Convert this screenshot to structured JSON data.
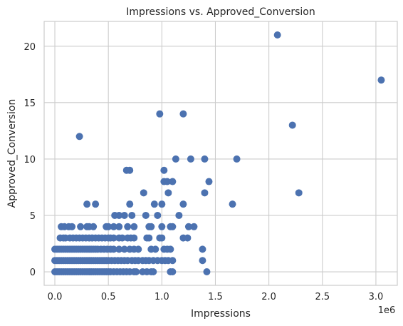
{
  "chart_data": {
    "type": "scatter",
    "title": "Impressions vs. Approved_Conversion",
    "xlabel": "Impressions",
    "ylabel": "Approved_Conversion",
    "x_offset_label": "1e6",
    "x_tick_values": [
      0,
      0.5,
      1.0,
      1.5,
      2.0,
      2.5,
      3.0
    ],
    "x_tick_labels": [
      "0.0",
      "0.5",
      "1.0",
      "1.5",
      "2.0",
      "2.5",
      "3.0"
    ],
    "y_tick_values": [
      0,
      5,
      10,
      15,
      20
    ],
    "y_tick_labels": [
      "0",
      "5",
      "10",
      "15",
      "20"
    ],
    "xlim": [
      -0.1,
      3.2
    ],
    "ylim": [
      -1.2,
      22.2
    ],
    "x_scale_multiplier": 1000000,
    "grid": true,
    "marker_color": "#4c72b0",
    "points": [
      [
        0.0,
        0
      ],
      [
        0.02,
        0
      ],
      [
        0.04,
        0
      ],
      [
        0.06,
        0
      ],
      [
        0.08,
        0
      ],
      [
        0.1,
        0
      ],
      [
        0.12,
        0
      ],
      [
        0.14,
        0
      ],
      [
        0.16,
        0
      ],
      [
        0.18,
        0
      ],
      [
        0.2,
        0
      ],
      [
        0.22,
        0
      ],
      [
        0.24,
        0
      ],
      [
        0.26,
        0
      ],
      [
        0.28,
        0
      ],
      [
        0.3,
        0
      ],
      [
        0.32,
        0
      ],
      [
        0.34,
        0
      ],
      [
        0.36,
        0
      ],
      [
        0.38,
        0
      ],
      [
        0.4,
        0
      ],
      [
        0.42,
        0
      ],
      [
        0.44,
        0
      ],
      [
        0.46,
        0
      ],
      [
        0.48,
        0
      ],
      [
        0.5,
        0
      ],
      [
        0.52,
        0
      ],
      [
        0.55,
        0
      ],
      [
        0.58,
        0
      ],
      [
        0.61,
        0
      ],
      [
        0.64,
        0
      ],
      [
        0.67,
        0
      ],
      [
        0.7,
        0
      ],
      [
        0.74,
        0
      ],
      [
        0.76,
        0
      ],
      [
        0.82,
        0
      ],
      [
        0.86,
        0
      ],
      [
        0.9,
        0
      ],
      [
        0.92,
        0
      ],
      [
        1.08,
        0
      ],
      [
        1.1,
        0
      ],
      [
        1.42,
        0
      ],
      [
        0.0,
        1
      ],
      [
        0.02,
        1
      ],
      [
        0.04,
        1
      ],
      [
        0.06,
        1
      ],
      [
        0.08,
        1
      ],
      [
        0.1,
        1
      ],
      [
        0.12,
        1
      ],
      [
        0.14,
        1
      ],
      [
        0.16,
        1
      ],
      [
        0.18,
        1
      ],
      [
        0.2,
        1
      ],
      [
        0.22,
        1
      ],
      [
        0.24,
        1
      ],
      [
        0.26,
        1
      ],
      [
        0.28,
        1
      ],
      [
        0.3,
        1
      ],
      [
        0.32,
        1
      ],
      [
        0.34,
        1
      ],
      [
        0.36,
        1
      ],
      [
        0.38,
        1
      ],
      [
        0.4,
        1
      ],
      [
        0.42,
        1
      ],
      [
        0.44,
        1
      ],
      [
        0.46,
        1
      ],
      [
        0.48,
        1
      ],
      [
        0.5,
        1
      ],
      [
        0.53,
        1
      ],
      [
        0.56,
        1
      ],
      [
        0.59,
        1
      ],
      [
        0.62,
        1
      ],
      [
        0.65,
        1
      ],
      [
        0.68,
        1
      ],
      [
        0.72,
        1
      ],
      [
        0.75,
        1
      ],
      [
        0.78,
        1
      ],
      [
        0.82,
        1
      ],
      [
        0.85,
        1
      ],
      [
        0.88,
        1
      ],
      [
        0.92,
        1
      ],
      [
        0.96,
        1
      ],
      [
        1.0,
        1
      ],
      [
        1.03,
        1
      ],
      [
        1.06,
        1
      ],
      [
        1.1,
        1
      ],
      [
        1.38,
        1
      ],
      [
        0.0,
        2
      ],
      [
        0.02,
        2
      ],
      [
        0.04,
        2
      ],
      [
        0.06,
        2
      ],
      [
        0.08,
        2
      ],
      [
        0.1,
        2
      ],
      [
        0.12,
        2
      ],
      [
        0.14,
        2
      ],
      [
        0.16,
        2
      ],
      [
        0.18,
        2
      ],
      [
        0.2,
        2
      ],
      [
        0.22,
        2
      ],
      [
        0.24,
        2
      ],
      [
        0.26,
        2
      ],
      [
        0.28,
        2
      ],
      [
        0.3,
        2
      ],
      [
        0.32,
        2
      ],
      [
        0.34,
        2
      ],
      [
        0.36,
        2
      ],
      [
        0.38,
        2
      ],
      [
        0.4,
        2
      ],
      [
        0.43,
        2
      ],
      [
        0.46,
        2
      ],
      [
        0.49,
        2
      ],
      [
        0.52,
        2
      ],
      [
        0.55,
        2
      ],
      [
        0.6,
        2
      ],
      [
        0.65,
        2
      ],
      [
        0.7,
        2
      ],
      [
        0.74,
        2
      ],
      [
        0.78,
        2
      ],
      [
        0.9,
        2
      ],
      [
        0.94,
        2
      ],
      [
        1.02,
        2
      ],
      [
        1.05,
        2
      ],
      [
        1.08,
        2
      ],
      [
        1.38,
        2
      ],
      [
        0.05,
        3
      ],
      [
        0.08,
        3
      ],
      [
        0.1,
        3
      ],
      [
        0.14,
        3
      ],
      [
        0.17,
        3
      ],
      [
        0.2,
        3
      ],
      [
        0.23,
        3
      ],
      [
        0.26,
        3
      ],
      [
        0.29,
        3
      ],
      [
        0.32,
        3
      ],
      [
        0.35,
        3
      ],
      [
        0.38,
        3
      ],
      [
        0.41,
        3
      ],
      [
        0.44,
        3
      ],
      [
        0.47,
        3
      ],
      [
        0.5,
        3
      ],
      [
        0.52,
        3
      ],
      [
        0.55,
        3
      ],
      [
        0.6,
        3
      ],
      [
        0.63,
        3
      ],
      [
        0.68,
        3
      ],
      [
        0.71,
        3
      ],
      [
        0.74,
        3
      ],
      [
        0.86,
        3
      ],
      [
        0.88,
        3
      ],
      [
        0.98,
        3
      ],
      [
        1.0,
        3
      ],
      [
        1.2,
        3
      ],
      [
        1.24,
        3
      ],
      [
        0.06,
        4
      ],
      [
        0.09,
        4
      ],
      [
        0.13,
        4
      ],
      [
        0.16,
        4
      ],
      [
        0.24,
        4
      ],
      [
        0.3,
        4
      ],
      [
        0.32,
        4
      ],
      [
        0.36,
        4
      ],
      [
        0.48,
        4
      ],
      [
        0.5,
        4
      ],
      [
        0.55,
        4
      ],
      [
        0.6,
        4
      ],
      [
        0.68,
        4
      ],
      [
        0.74,
        4
      ],
      [
        0.88,
        4
      ],
      [
        0.9,
        4
      ],
      [
        1.0,
        4
      ],
      [
        1.08,
        4
      ],
      [
        1.1,
        4
      ],
      [
        1.25,
        4
      ],
      [
        1.3,
        4
      ],
      [
        0.56,
        5
      ],
      [
        0.6,
        5
      ],
      [
        0.65,
        5
      ],
      [
        0.72,
        5
      ],
      [
        0.85,
        5
      ],
      [
        0.96,
        5
      ],
      [
        1.16,
        5
      ],
      [
        0.3,
        6
      ],
      [
        0.38,
        6
      ],
      [
        0.7,
        6
      ],
      [
        0.93,
        6
      ],
      [
        1.0,
        6
      ],
      [
        1.2,
        6
      ],
      [
        1.66,
        6
      ],
      [
        0.83,
        7
      ],
      [
        1.06,
        7
      ],
      [
        1.4,
        7
      ],
      [
        2.28,
        7
      ],
      [
        1.02,
        8
      ],
      [
        1.05,
        8
      ],
      [
        1.1,
        8
      ],
      [
        1.44,
        8
      ],
      [
        1.02,
        9
      ],
      [
        0.67,
        9
      ],
      [
        0.7,
        9
      ],
      [
        1.13,
        10
      ],
      [
        1.27,
        10
      ],
      [
        1.4,
        10
      ],
      [
        1.7,
        10
      ],
      [
        0.23,
        12
      ],
      [
        2.22,
        13
      ],
      [
        0.98,
        14
      ],
      [
        1.2,
        14
      ],
      [
        3.05,
        17
      ],
      [
        2.08,
        21
      ]
    ]
  }
}
